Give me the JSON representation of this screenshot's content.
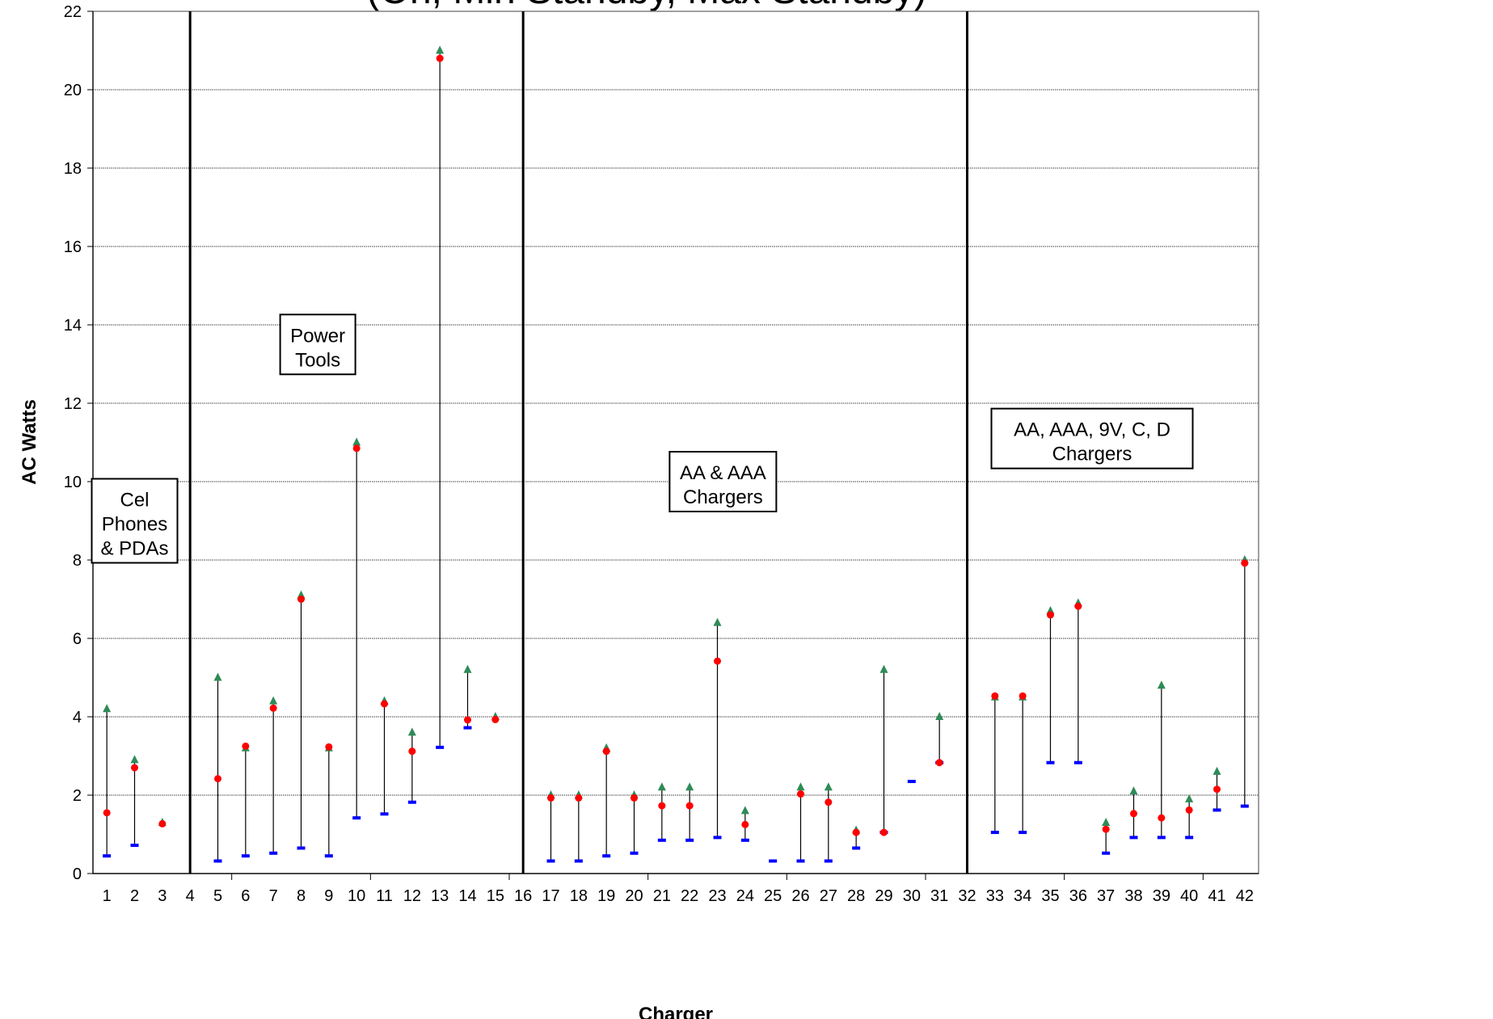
{
  "chart_data": {
    "type": "scatter",
    "title": "(On, Min Standby, Max Standby)",
    "xlabel": "Charger",
    "ylabel": "AC Watts",
    "xlim": [
      0.5,
      42.5
    ],
    "ylim": [
      0,
      22
    ],
    "y_ticks": [
      0,
      2,
      4,
      6,
      8,
      10,
      12,
      14,
      16,
      18,
      20,
      22
    ],
    "x_tick_labels": [
      "1",
      "2",
      "3",
      "4",
      "5",
      "6",
      "7",
      "8",
      "9",
      "10",
      "11",
      "12",
      "13",
      "14",
      "15",
      "16",
      "17",
      "18",
      "19",
      "20",
      "21",
      "22",
      "23",
      "24",
      "25",
      "26",
      "27",
      "28",
      "29",
      "30",
      "31",
      "32",
      "33",
      "34",
      "35",
      "36",
      "37",
      "38",
      "39",
      "40",
      "41",
      "42"
    ],
    "grid": "horizontal",
    "series_colors": {
      "max_standby": "#2e8b57",
      "on": "#ff0000",
      "min_standby": "#0000ff",
      "range_line": "#000000"
    },
    "chargers": [
      {
        "x": 1,
        "max": 4.2,
        "on": 1.55,
        "min": 0.45
      },
      {
        "x": 2,
        "max": 2.9,
        "on": 2.7,
        "min": 0.72
      },
      {
        "x": 3,
        "max": 1.3,
        "on": 1.27,
        "min": null
      },
      {
        "x": 5,
        "max": 5.0,
        "on": 2.42,
        "min": 0.32
      },
      {
        "x": 6,
        "max": 3.2,
        "on": 3.25,
        "min": 0.45
      },
      {
        "x": 7,
        "max": 4.4,
        "on": 4.22,
        "min": 0.52
      },
      {
        "x": 8,
        "max": 7.1,
        "on": 7.0,
        "min": 0.65
      },
      {
        "x": 9,
        "max": 3.2,
        "on": 3.23,
        "min": 0.45
      },
      {
        "x": 10,
        "max": 11.0,
        "on": 10.85,
        "min": 1.42
      },
      {
        "x": 11,
        "max": 4.4,
        "on": 4.33,
        "min": 1.52
      },
      {
        "x": 12,
        "max": 3.6,
        "on": 3.12,
        "min": 1.82
      },
      {
        "x": 13,
        "max": 21.0,
        "on": 20.8,
        "min": 3.22
      },
      {
        "x": 14,
        "max": 5.2,
        "on": 3.92,
        "min": 3.72
      },
      {
        "x": 15,
        "max": 4.0,
        "on": 3.93,
        "min": null
      },
      {
        "x": 17,
        "max": 2.0,
        "on": 1.93,
        "min": 0.32
      },
      {
        "x": 18,
        "max": 2.0,
        "on": 1.93,
        "min": 0.32
      },
      {
        "x": 19,
        "max": 3.2,
        "on": 3.12,
        "min": 0.45
      },
      {
        "x": 20,
        "max": 2.0,
        "on": 1.93,
        "min": 0.52
      },
      {
        "x": 21,
        "max": 2.2,
        "on": 1.73,
        "min": 0.85
      },
      {
        "x": 22,
        "max": 2.2,
        "on": 1.73,
        "min": 0.85
      },
      {
        "x": 23,
        "max": 6.4,
        "on": 5.42,
        "min": 0.92
      },
      {
        "x": 24,
        "max": 1.6,
        "on": 1.25,
        "min": 0.85
      },
      {
        "x": 25,
        "max": null,
        "on": null,
        "min": 0.32
      },
      {
        "x": 26,
        "max": 2.2,
        "on": 2.03,
        "min": 0.32
      },
      {
        "x": 27,
        "max": 2.2,
        "on": 1.82,
        "min": 0.32
      },
      {
        "x": 28,
        "max": 1.1,
        "on": 1.05,
        "min": 0.65
      },
      {
        "x": 29,
        "max": 5.2,
        "on": 1.05,
        "min": 1.05
      },
      {
        "x": 30,
        "max": null,
        "on": null,
        "min": 2.35
      },
      {
        "x": 31,
        "max": 4.0,
        "on": 2.83,
        "min": 2.83
      },
      {
        "x": 33,
        "max": 4.5,
        "on": 4.53,
        "min": 1.05
      },
      {
        "x": 34,
        "max": 4.5,
        "on": 4.53,
        "min": 1.05
      },
      {
        "x": 35,
        "max": 6.7,
        "on": 6.6,
        "min": 2.83
      },
      {
        "x": 36,
        "max": 6.9,
        "on": 6.82,
        "min": 2.83
      },
      {
        "x": 37,
        "max": 1.3,
        "on": 1.13,
        "min": 0.52
      },
      {
        "x": 38,
        "max": 2.1,
        "on": 1.53,
        "min": 0.92
      },
      {
        "x": 39,
        "max": 4.8,
        "on": 1.42,
        "min": 0.92
      },
      {
        "x": 40,
        "max": 1.9,
        "on": 1.62,
        "min": 0.92
      },
      {
        "x": 41,
        "max": 2.6,
        "on": 2.15,
        "min": 1.62
      },
      {
        "x": 42,
        "max": 8.0,
        "on": 7.92,
        "min": 1.72
      }
    ],
    "section_dividers": [
      4,
      16,
      32
    ],
    "annotations": [
      {
        "text": [
          "Cel",
          "Phones",
          "& PDAs"
        ],
        "x": 2.0,
        "y": 9.0
      },
      {
        "text": [
          "Power",
          "Tools"
        ],
        "x": 8.6,
        "y": 13.5
      },
      {
        "text": [
          "AA & AAA",
          "Chargers"
        ],
        "x": 23.2,
        "y": 10.0
      },
      {
        "text": [
          "AA, AAA, 9V, C, D",
          "Chargers"
        ],
        "x": 36.5,
        "y": 11.1
      }
    ]
  }
}
